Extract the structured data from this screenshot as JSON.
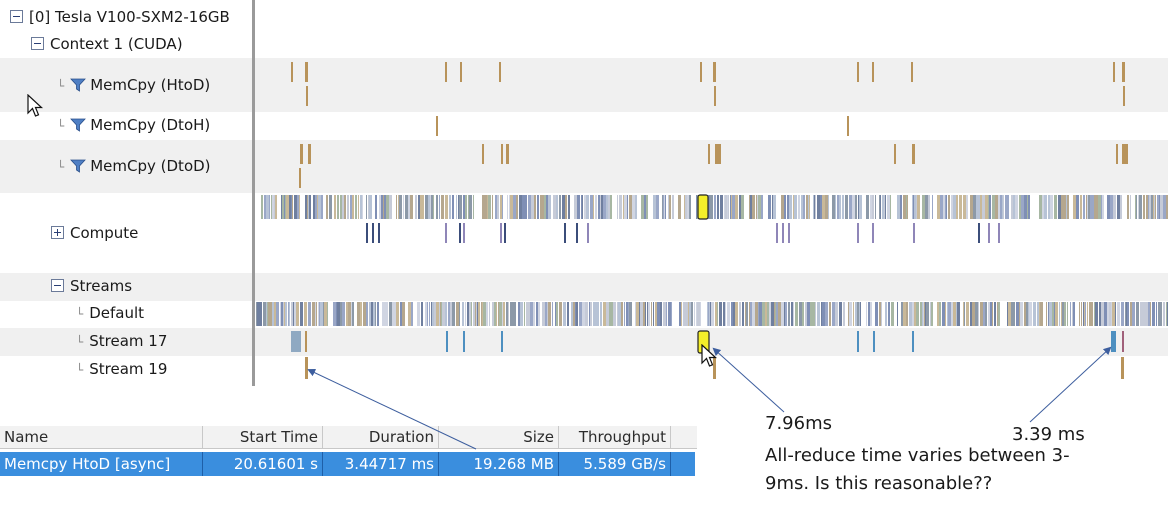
{
  "tree": {
    "device": "[0] Tesla V100-SXM2-16GB",
    "context": "Context 1 (CUDA)",
    "memcpy_htod": "MemCpy (HtoD)",
    "memcpy_dtoh": "MemCpy (DtoH)",
    "memcpy_dtod": "MemCpy (DtoD)",
    "compute": "Compute",
    "streams": "Streams",
    "default": "Default",
    "stream17": "Stream 17",
    "stream19": "Stream 19",
    "elbow": "└"
  },
  "table": {
    "headers": [
      "Name",
      "Start Time",
      "Duration",
      "Size",
      "Throughput"
    ],
    "row": [
      "Memcpy HtoD [async]",
      "20.61601 s",
      "3.44717 ms",
      "19.268 MB",
      "5.589 GB/s"
    ]
  },
  "annotations": {
    "first": "7.96ms",
    "second": "3.39 ms",
    "question": "All-reduce time varies between 3-",
    "question2": "9ms. Is this reasonable??"
  },
  "colors": {
    "memcpy": "#b8935a",
    "highlight": "#f4ee2a",
    "selection": "#3a8ede",
    "arrow": "#3d5e9e"
  }
}
